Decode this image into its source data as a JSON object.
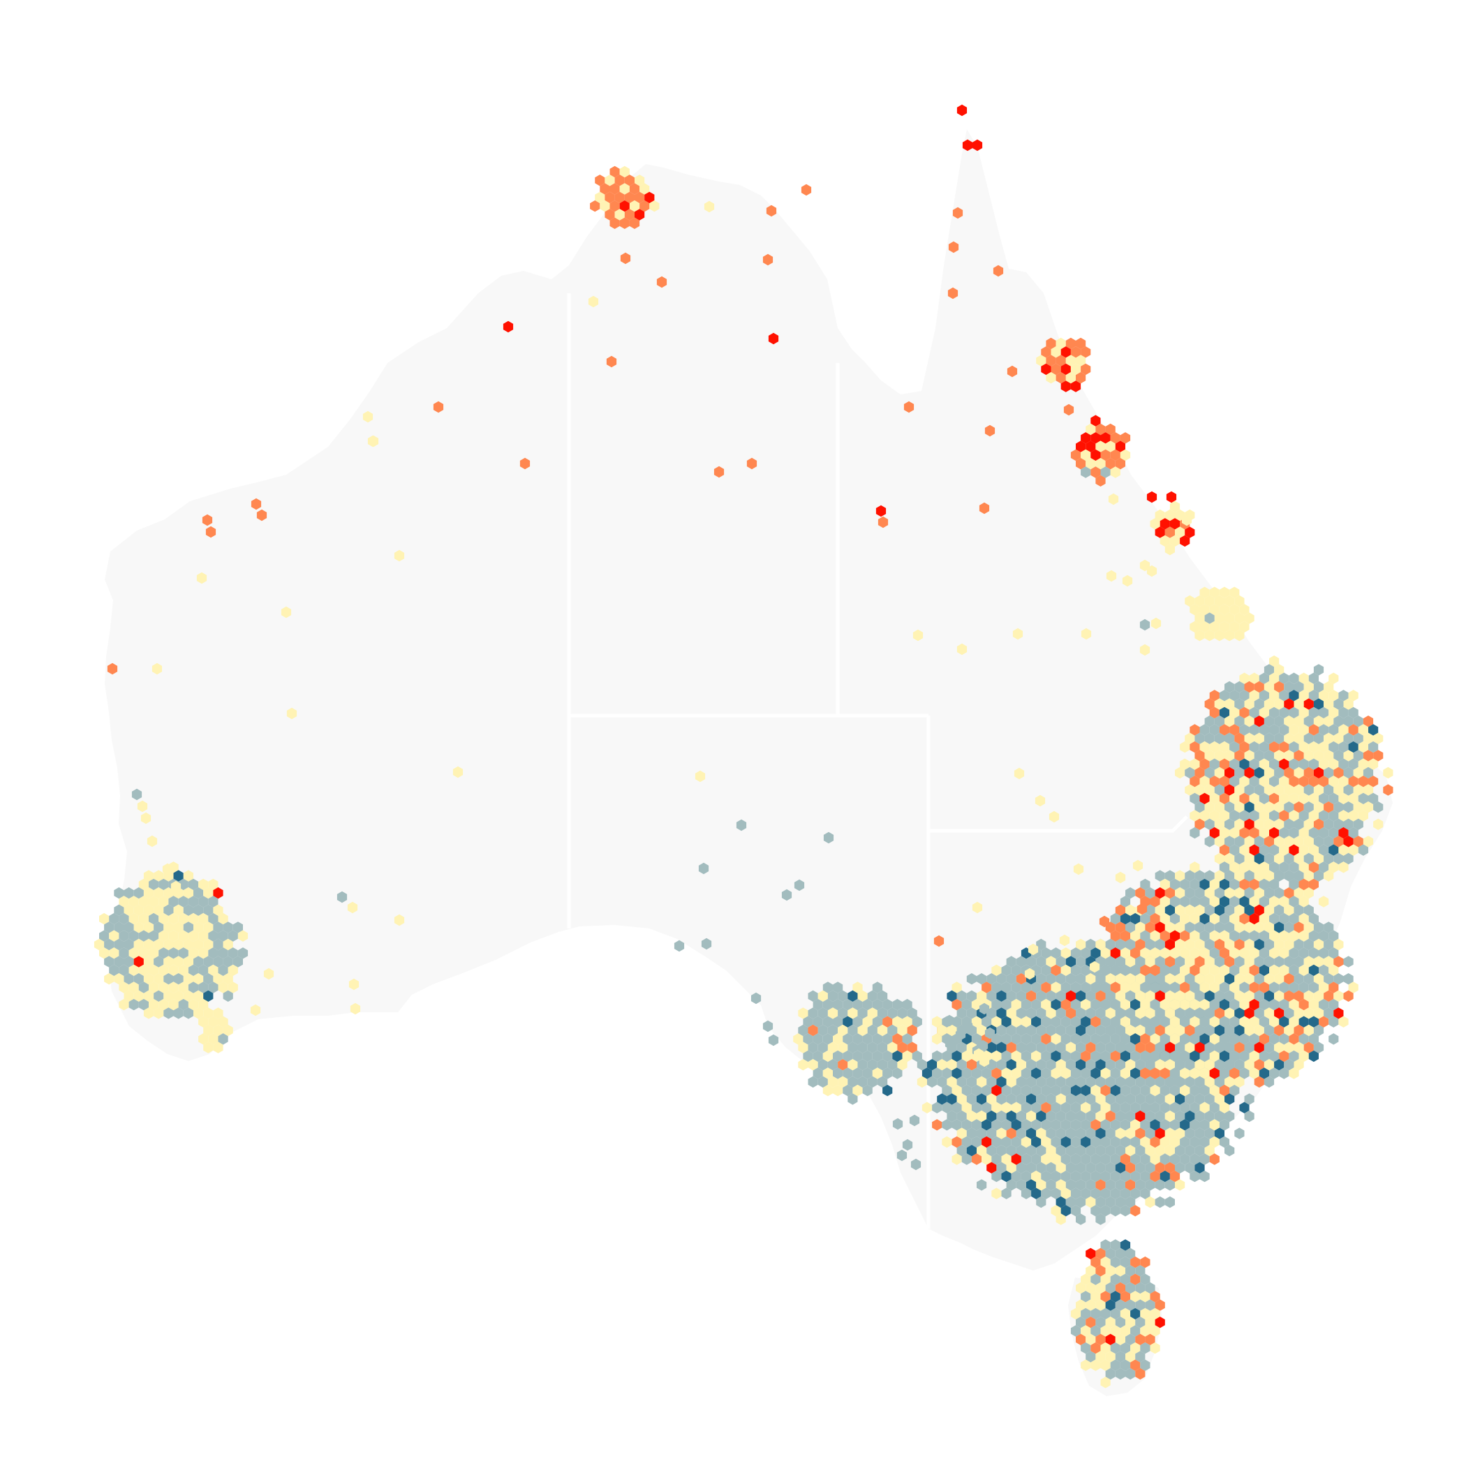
{
  "map": {
    "subject": "Australia",
    "land_color": "#f8f8f8",
    "border_color": "#ffffff",
    "background_color": "#ffffff",
    "palette": {
      "very_high": "#ff1100",
      "high": "#ff8750",
      "medium": "#fff3b4",
      "low": "#a2bcbe",
      "very_low": "#24698a"
    }
  }
}
